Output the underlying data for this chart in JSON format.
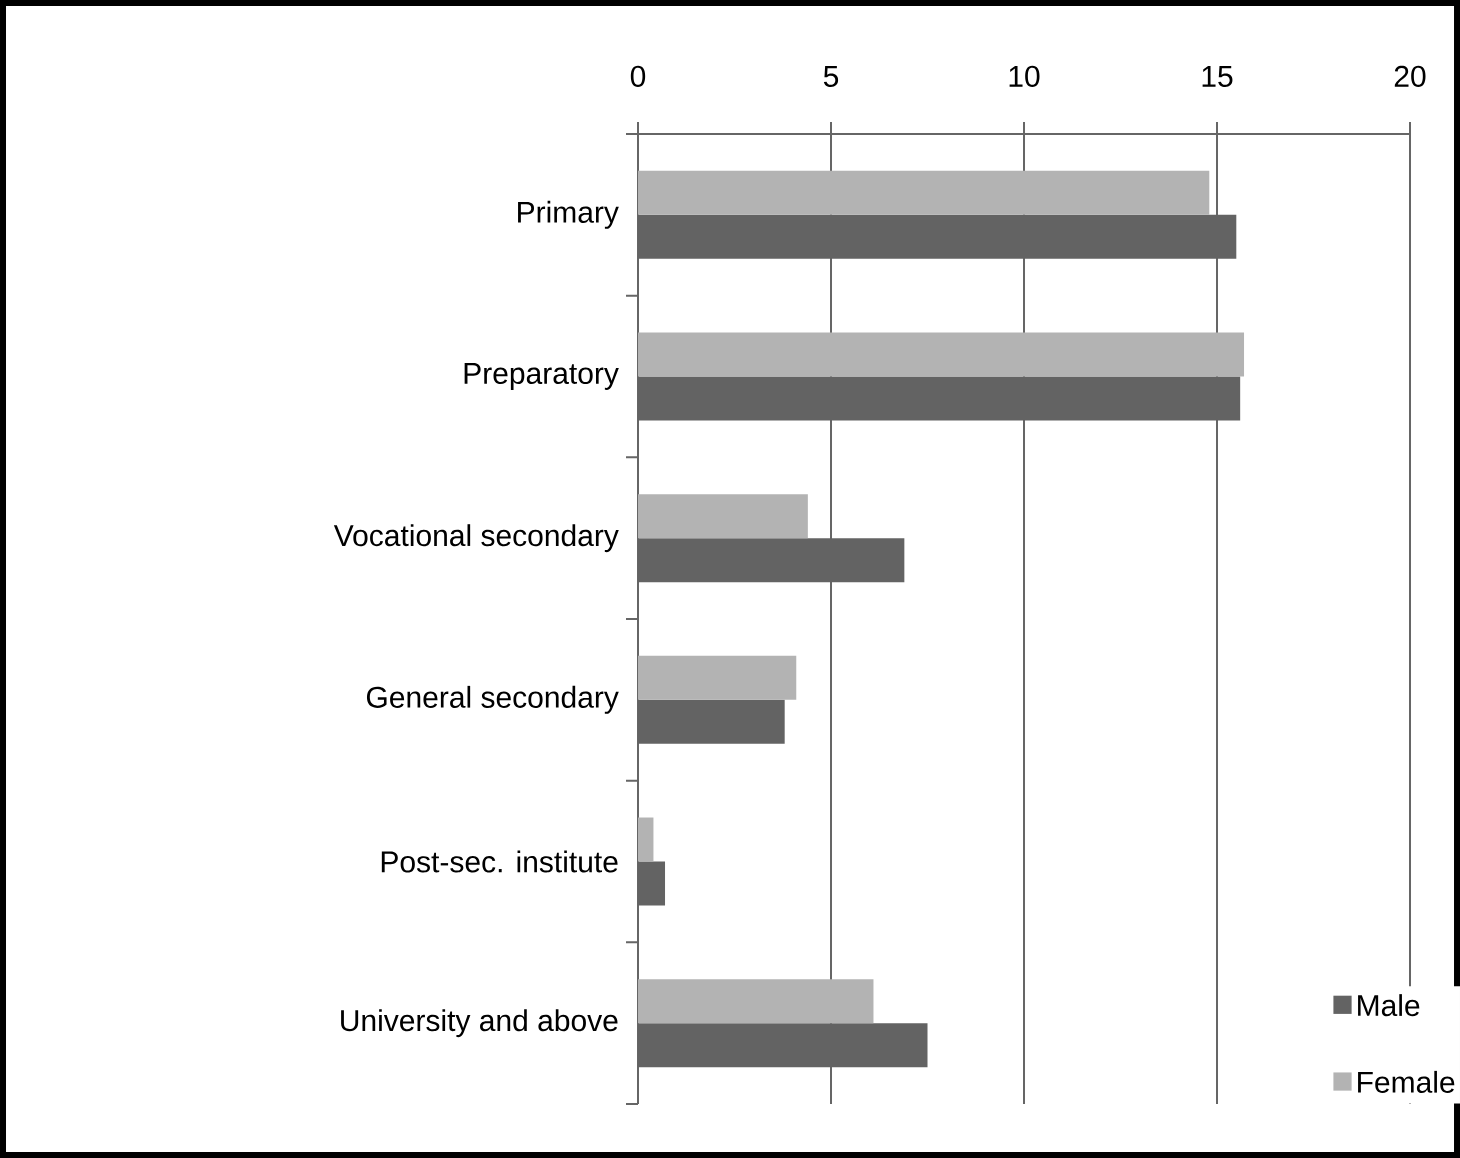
{
  "chart_data": {
    "type": "bar",
    "orientation": "horizontal",
    "categories": [
      "Primary",
      "Preparatory",
      "Vocational secondary",
      "General secondary",
      "Post-sec. institute",
      "University and above"
    ],
    "series": [
      {
        "name": "Male",
        "color": "#636363",
        "values": [
          15.5,
          15.6,
          6.9,
          3.8,
          0.7,
          7.5
        ]
      },
      {
        "name": "Female",
        "color": "#b3b3b3",
        "values": [
          14.8,
          15.7,
          4.4,
          4.1,
          0.4,
          6.1
        ]
      }
    ],
    "xlim": [
      0,
      20
    ],
    "xticks": [
      0,
      5,
      10,
      15,
      20
    ],
    "grid": "x",
    "legend": "bottom right"
  }
}
